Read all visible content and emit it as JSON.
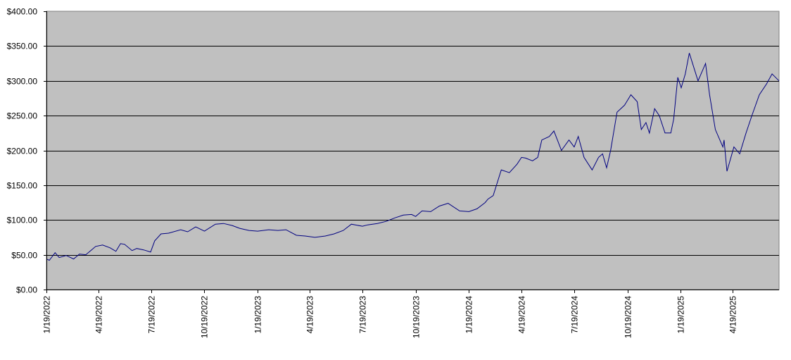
{
  "chart_data": {
    "type": "line",
    "title": "",
    "xlabel": "",
    "ylabel": "",
    "ylim": [
      0,
      400
    ],
    "grid": true,
    "legend": "none",
    "colors": {
      "plot_background": "#c0c0c0",
      "line": "#000080",
      "gridline": "#000000",
      "frame": "#808080"
    },
    "y_ticks": [
      0,
      50,
      100,
      150,
      200,
      250,
      300,
      350,
      400
    ],
    "y_tick_labels": [
      "$0.00",
      "$50.00",
      "$100.00",
      "$150.00",
      "$200.00",
      "$250.00",
      "$300.00",
      "$350.00",
      "$400.00"
    ],
    "x_range": [
      "2022-01-19",
      "2025-07-08"
    ],
    "x_ticks": [
      "2022-01-19",
      "2022-04-19",
      "2022-07-19",
      "2022-10-19",
      "2023-01-19",
      "2023-04-19",
      "2023-07-19",
      "2023-10-19",
      "2024-01-19",
      "2024-04-19",
      "2024-07-19",
      "2024-10-19",
      "2025-01-19",
      "2025-04-19"
    ],
    "x_tick_labels": [
      "1/19/2022",
      "4/19/2022",
      "7/19/2022",
      "10/19/2022",
      "1/19/2023",
      "4/19/2023",
      "7/19/2023",
      "10/19/2023",
      "1/19/2024",
      "4/19/2024",
      "7/19/2024",
      "10/19/2024",
      "1/19/2025",
      "4/19/2025"
    ],
    "series": [
      {
        "x": [
          "2022-01-19",
          "2022-01-24",
          "2022-02-03",
          "2022-02-10",
          "2022-02-22",
          "2022-03-07",
          "2022-03-17",
          "2022-03-28",
          "2022-04-07",
          "2022-04-14",
          "2022-04-26",
          "2022-05-09",
          "2022-05-19",
          "2022-05-27",
          "2022-06-03",
          "2022-06-16",
          "2022-06-24",
          "2022-07-06",
          "2022-07-18",
          "2022-07-25",
          "2022-08-05",
          "2022-08-18",
          "2022-09-08",
          "2022-09-20",
          "2022-10-04",
          "2022-10-19",
          "2022-11-07",
          "2022-11-21",
          "2022-12-06",
          "2022-12-19",
          "2023-01-04",
          "2023-01-19",
          "2023-02-07",
          "2023-02-23",
          "2023-03-09",
          "2023-03-27",
          "2023-04-11",
          "2023-04-28",
          "2023-05-16",
          "2023-05-31",
          "2023-06-16",
          "2023-06-30",
          "2023-07-19",
          "2023-07-28",
          "2023-08-14",
          "2023-08-29",
          "2023-09-13",
          "2023-09-28",
          "2023-10-12",
          "2023-10-19",
          "2023-10-30",
          "2023-11-14",
          "2023-11-29",
          "2023-12-14",
          "2024-01-03",
          "2024-01-19",
          "2024-02-02",
          "2024-02-16",
          "2024-02-21",
          "2024-03-01",
          "2024-03-15",
          "2024-03-29",
          "2024-04-11",
          "2024-04-19",
          "2024-04-26",
          "2024-05-08",
          "2024-05-17",
          "2024-05-24",
          "2024-06-06",
          "2024-06-14",
          "2024-06-27",
          "2024-07-10",
          "2024-07-19",
          "2024-07-26",
          "2024-08-05",
          "2024-08-19",
          "2024-08-30",
          "2024-09-06",
          "2024-09-13",
          "2024-09-20",
          "2024-10-01",
          "2024-10-14",
          "2024-10-25",
          "2024-11-05",
          "2024-11-12",
          "2024-11-20",
          "2024-11-26",
          "2024-12-05",
          "2024-12-13",
          "2024-12-23",
          "2025-01-02",
          "2025-01-07",
          "2025-01-14",
          "2025-01-20",
          "2025-01-27",
          "2025-02-03",
          "2025-02-18",
          "2025-03-03",
          "2025-03-10",
          "2025-03-20",
          "2025-04-02",
          "2025-04-04",
          "2025-04-09",
          "2025-04-21",
          "2025-05-01",
          "2025-05-12",
          "2025-05-22",
          "2025-06-04",
          "2025-06-16",
          "2025-06-26",
          "2025-07-08"
        ],
        "y": [
          44,
          42,
          53,
          46,
          49,
          44,
          51,
          50,
          57,
          62,
          64,
          60,
          55,
          66,
          65,
          56,
          59,
          57,
          54,
          70,
          80,
          81,
          86,
          83,
          90,
          84,
          94,
          95,
          92,
          88,
          85,
          84,
          86,
          85,
          86,
          78,
          77,
          75,
          77,
          80,
          85,
          94,
          91,
          93,
          95,
          98,
          103,
          107,
          108,
          105,
          113,
          112,
          120,
          124,
          113,
          112,
          116,
          125,
          130,
          135,
          172,
          168,
          180,
          190,
          189,
          185,
          190,
          215,
          220,
          228,
          200,
          215,
          205,
          220,
          190,
          172,
          190,
          195,
          175,
          200,
          255,
          265,
          280,
          270,
          230,
          240,
          225,
          260,
          250,
          225,
          225,
          245,
          305,
          290,
          310,
          340,
          300,
          325,
          280,
          230,
          205,
          215,
          170,
          205,
          195,
          225,
          250,
          280,
          295,
          310,
          300
        ],
        "values": [
          44,
          42,
          53,
          46,
          49,
          44,
          51,
          50,
          57,
          62,
          64,
          60,
          55,
          66,
          65,
          56,
          59,
          57,
          54,
          70,
          80,
          81,
          86,
          83,
          90,
          84,
          94,
          95,
          92,
          88,
          85,
          84,
          86,
          85,
          86,
          78,
          77,
          75,
          77,
          80,
          85,
          94,
          91,
          93,
          95,
          98,
          103,
          107,
          108,
          105,
          113,
          112,
          120,
          124,
          113,
          112,
          116,
          125,
          130,
          135,
          172,
          168,
          180,
          190,
          189,
          185,
          190,
          215,
          220,
          228,
          200,
          215,
          205,
          220,
          190,
          172,
          190,
          195,
          175,
          200,
          255,
          265,
          280,
          270,
          230,
          240,
          225,
          260,
          250,
          225,
          225,
          245,
          305,
          290,
          310,
          340,
          300,
          325,
          280,
          230,
          205,
          215,
          170,
          205,
          195,
          225,
          250,
          280,
          295,
          310,
          300
        ]
      }
    ]
  }
}
